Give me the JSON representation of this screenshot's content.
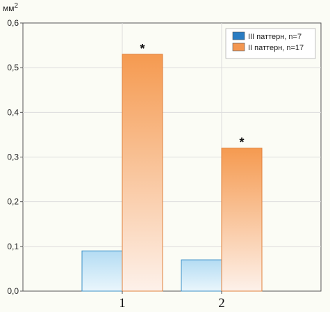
{
  "chart_data": {
    "type": "bar",
    "ylabel": "мм",
    "ylabel_superscript": "2",
    "categories": [
      "1",
      "2"
    ],
    "ylim": [
      0,
      0.6
    ],
    "yticks": [
      "0,0",
      "0,1",
      "0,2",
      "0,3",
      "0,4",
      "0,5",
      "0,6"
    ],
    "series": [
      {
        "name": "III паттерн, n=7",
        "values": [
          0.09,
          0.07
        ],
        "color_top": "#b4dcf3",
        "color_bottom": "#eaf6fc",
        "legend_color": "#2a7cc2"
      },
      {
        "name": "II паттерн, n=17",
        "values": [
          0.53,
          0.32
        ],
        "color_top": "#f59a50",
        "color_bottom": "#fdf1ea",
        "legend_color": "#f39650"
      }
    ],
    "annotations": [
      "*",
      "*"
    ],
    "grid": true,
    "legend_position": "top-right"
  }
}
